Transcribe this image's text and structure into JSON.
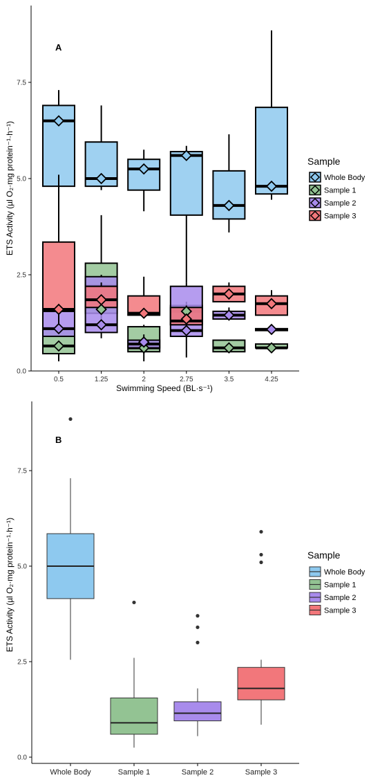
{
  "chart_data": [
    {
      "panel_label": "A",
      "type": "box",
      "xlabel": "Swimming Speed (BL·s⁻¹)",
      "ylabel": "ETS Activity (µl O₂·mg protein⁻¹·h⁻¹)",
      "ylim": [
        0,
        9.4
      ],
      "yticks": [
        "0.0",
        "2.5",
        "5.0",
        "7.5"
      ],
      "categories": [
        "0.5",
        "1.25",
        "2",
        "2.75",
        "3.5",
        "4.25"
      ],
      "legend": {
        "title": "Sample",
        "position": "right",
        "entries": [
          "Whole Body",
          "Sample 1",
          "Sample 2",
          "Sample 3"
        ]
      },
      "series": [
        {
          "name": "Whole Body",
          "color": "#8ec9ef",
          "boxes": [
            {
              "min": 4.8,
              "q1": 4.8,
              "median": 6.5,
              "q3": 6.9,
              "max": 7.3,
              "mean": 6.5
            },
            {
              "min": 4.7,
              "q1": 4.8,
              "median": 5.0,
              "q3": 5.95,
              "max": 6.9,
              "mean": 5.0
            },
            {
              "min": 4.15,
              "q1": 4.7,
              "median": 5.25,
              "q3": 5.5,
              "max": 5.75,
              "mean": 5.25
            },
            {
              "min": 2.3,
              "q1": 4.05,
              "median": 5.6,
              "q3": 5.7,
              "max": 5.85,
              "mean": 5.6
            },
            {
              "min": 3.6,
              "q1": 3.95,
              "median": 4.3,
              "q3": 5.2,
              "max": 6.15,
              "mean": 4.3
            },
            {
              "min": 4.45,
              "q1": 4.6,
              "median": 4.8,
              "q3": 6.85,
              "max": 8.85,
              "mean": 4.8
            }
          ]
        },
        {
          "name": "Sample 1",
          "color": "#93c393",
          "boxes": [
            {
              "min": 0.25,
              "q1": 0.45,
              "median": 0.65,
              "q3": 1.1,
              "max": 1.6,
              "mean": 0.65
            },
            {
              "min": 1.2,
              "q1": 1.5,
              "median": 2.2,
              "q3": 2.8,
              "max": 4.05,
              "mean": 1.6
            },
            {
              "min": 0.45,
              "q1": 0.5,
              "median": 0.6,
              "q3": 1.15,
              "max": 1.2,
              "mean": 0.6
            },
            {
              "min": 0.9,
              "q1": 1.2,
              "median": 1.55,
              "q3": 1.7,
              "max": 1.8,
              "mean": 1.55
            },
            {
              "min": 0.5,
              "q1": 0.5,
              "median": 0.6,
              "q3": 0.8,
              "max": 0.8,
              "mean": 0.6
            },
            {
              "min": 0.55,
              "q1": 0.6,
              "median": 0.6,
              "q3": 0.7,
              "max": 0.7,
              "mean": 0.6
            }
          ]
        },
        {
          "name": "Sample 2",
          "color": "#a88bec",
          "boxes": [
            {
              "min": 0.9,
              "q1": 0.9,
              "median": 1.1,
              "q3": 1.55,
              "max": 1.75,
              "mean": 1.1
            },
            {
              "min": 0.85,
              "q1": 1.0,
              "median": 1.2,
              "q3": 2.45,
              "max": 2.5,
              "mean": 1.2
            },
            {
              "min": 0.25,
              "q1": 0.6,
              "median": 0.7,
              "q3": 0.8,
              "max": 0.95,
              "mean": 0.75
            },
            {
              "min": 0.35,
              "q1": 0.9,
              "median": 1.05,
              "q3": 2.2,
              "max": 2.3,
              "mean": 1.05
            },
            {
              "min": 1.35,
              "q1": 1.35,
              "median": 1.45,
              "q3": 1.55,
              "max": 1.65,
              "mean": 1.45
            },
            {
              "min": 1.05,
              "q1": 1.05,
              "median": 1.08,
              "q3": 1.1,
              "max": 1.1,
              "mean": 1.08
            }
          ]
        },
        {
          "name": "Sample 3",
          "color": "#f2777b",
          "boxes": [
            {
              "min": 1.1,
              "q1": 1.55,
              "median": 1.6,
              "q3": 3.35,
              "max": 5.1,
              "mean": 1.6
            },
            {
              "min": 1.5,
              "q1": 1.65,
              "median": 1.85,
              "q3": 2.2,
              "max": 2.3,
              "mean": 1.85
            },
            {
              "min": 1.45,
              "q1": 1.45,
              "median": 1.5,
              "q3": 1.95,
              "max": 2.45,
              "mean": 1.5
            },
            {
              "min": 1.2,
              "q1": 1.2,
              "median": 1.3,
              "q3": 1.65,
              "max": 1.7,
              "mean": 1.35
            },
            {
              "min": 1.8,
              "q1": 1.8,
              "median": 2.0,
              "q3": 2.2,
              "max": 2.3,
              "mean": 2.0
            },
            {
              "min": 1.45,
              "q1": 1.45,
              "median": 1.75,
              "q3": 1.95,
              "max": 2.1,
              "mean": 1.75
            }
          ]
        }
      ]
    },
    {
      "panel_label": "B",
      "type": "box",
      "xlabel": "",
      "ylabel": "ETS Activity (µl O₂·mg protein⁻¹·h⁻¹)",
      "ylim": [
        -0.15,
        9.4
      ],
      "yticks": [
        "0.0",
        "2.5",
        "5.0",
        "7.5"
      ],
      "categories": [
        "Whole Body",
        "Sample 1",
        "Sample 2",
        "Sample 3"
      ],
      "legend": {
        "title": "Sample",
        "position": "right",
        "entries": [
          "Whole Body",
          "Sample 1",
          "Sample 2",
          "Sample 3"
        ]
      },
      "series": [
        {
          "name": "Whole Body",
          "color": "#8ec9ef",
          "min": 2.55,
          "q1": 4.15,
          "median": 5.0,
          "q3": 5.85,
          "max": 7.3,
          "outliers": [
            8.85
          ]
        },
        {
          "name": "Sample 1",
          "color": "#93c393",
          "min": 0.25,
          "q1": 0.6,
          "median": 0.9,
          "q3": 1.55,
          "max": 2.6,
          "outliers": [
            4.05
          ]
        },
        {
          "name": "Sample 2",
          "color": "#a88bec",
          "min": 0.55,
          "q1": 0.95,
          "median": 1.15,
          "q3": 1.45,
          "max": 1.8,
          "outliers": [
            3.0,
            3.4,
            3.7
          ]
        },
        {
          "name": "Sample 3",
          "color": "#f2777b",
          "min": 0.85,
          "q1": 1.5,
          "median": 1.8,
          "q3": 2.35,
          "max": 2.55,
          "outliers": [
            5.1,
            5.3,
            5.9
          ]
        }
      ]
    }
  ]
}
